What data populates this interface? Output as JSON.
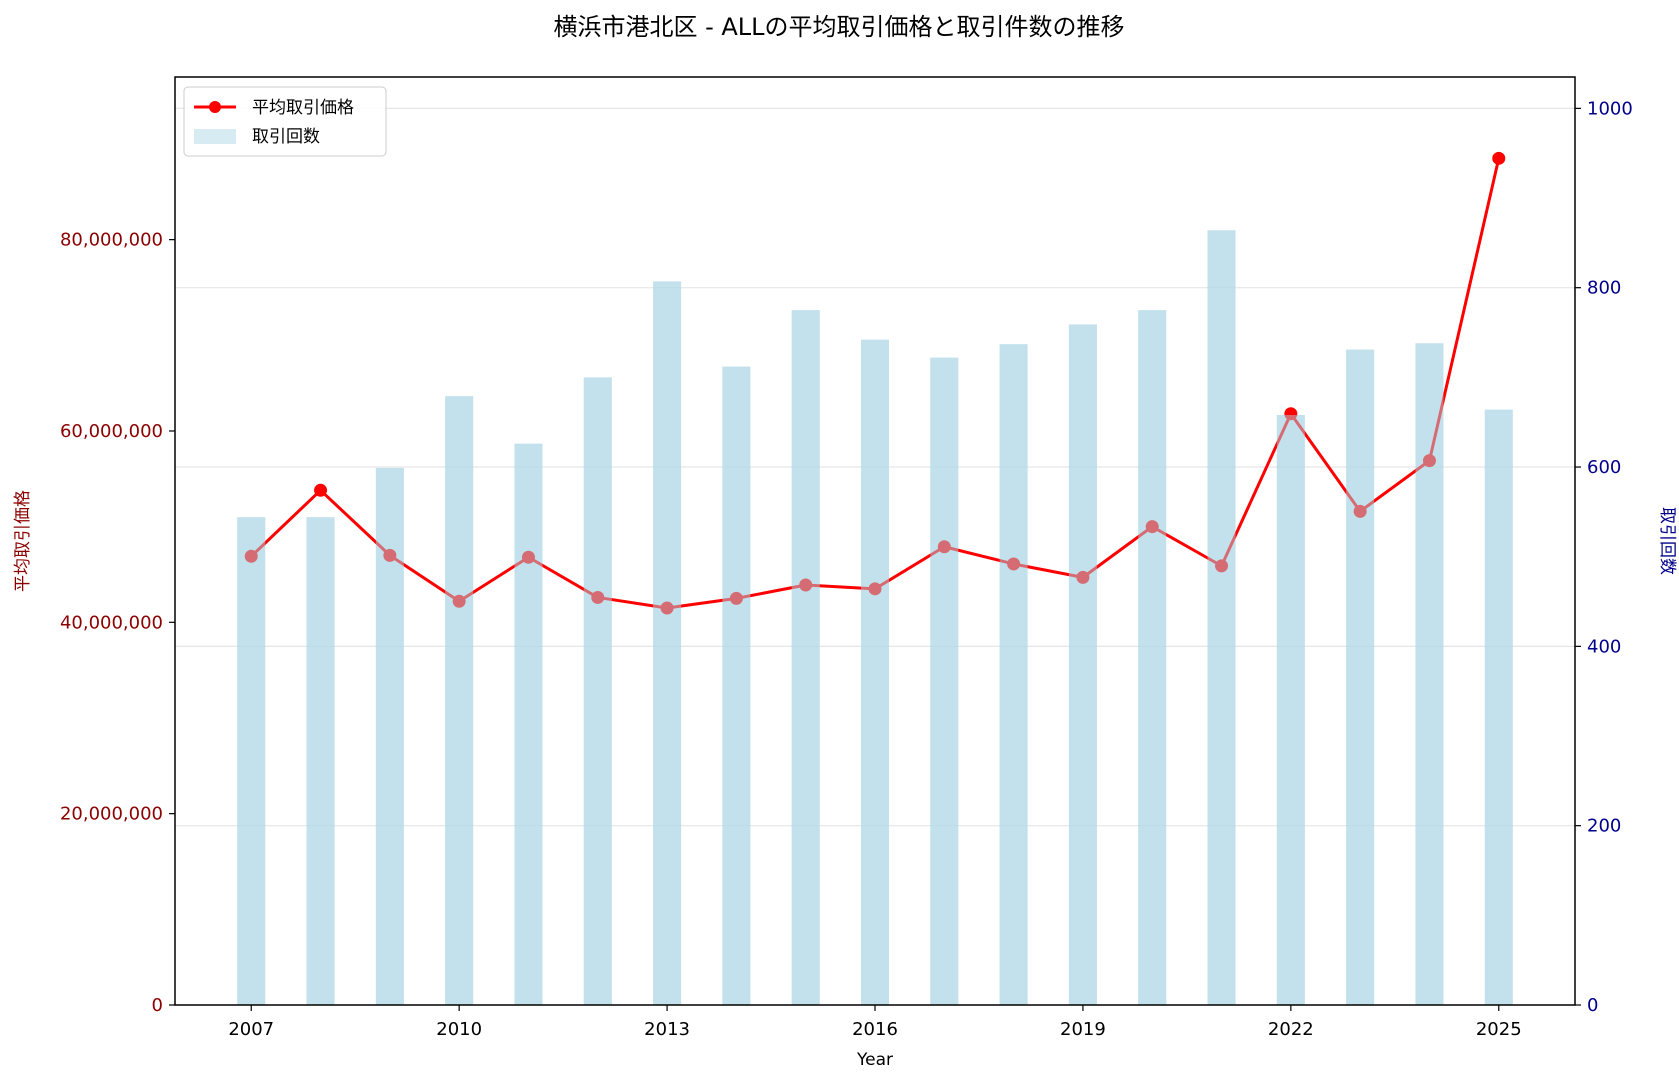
{
  "chart_data": {
    "type": "bar+line",
    "title": "横浜市港北区 - ALLの平均取引価格と取引件数の推移",
    "xlabel": "Year",
    "ylabel_left": "平均取引価格",
    "ylabel_right": "取引回数",
    "years": [
      2007,
      2008,
      2009,
      2010,
      2011,
      2012,
      2013,
      2014,
      2015,
      2016,
      2017,
      2018,
      2019,
      2020,
      2021,
      2022,
      2023,
      2024,
      2025
    ],
    "x_ticks": [
      "2007",
      "2010",
      "2013",
      "2016",
      "2019",
      "2022",
      "2025"
    ],
    "x_lim": [
      2005.9,
      2026.1
    ],
    "y_left_lim": [
      0,
      97000000
    ],
    "y_left_ticks": [
      "0",
      "20,000,000",
      "40,000,000",
      "60,000,000",
      "80,000,000"
    ],
    "y_left_tick_values": [
      0,
      20000000,
      40000000,
      60000000,
      80000000
    ],
    "y_right_lim": [
      0,
      1035
    ],
    "y_right_ticks": [
      "0",
      "200",
      "400",
      "600",
      "800",
      "1000"
    ],
    "y_right_tick_values": [
      0,
      200,
      400,
      600,
      800,
      1000
    ],
    "grid": "horizontal (right axis)",
    "legend_position": "top-left",
    "series": [
      {
        "name": "平均取引価格",
        "kind": "line",
        "axis": "left",
        "color": "#ff0000",
        "values": [
          46900000,
          53800000,
          47000000,
          42200000,
          46800000,
          42600000,
          41500000,
          42500000,
          43900000,
          43500000,
          47900000,
          46100000,
          44700000,
          50000000,
          45900000,
          61800000,
          51600000,
          56900000,
          88500000
        ]
      },
      {
        "name": "取引回数",
        "kind": "bar",
        "axis": "right",
        "color": "#add8e6",
        "values": [
          544,
          544,
          599,
          679,
          626,
          700,
          807,
          712,
          775,
          742,
          722,
          737,
          759,
          775,
          864,
          658,
          731,
          738,
          664
        ]
      }
    ],
    "colors": {
      "left_axis": "#8b0000",
      "right_axis": "#00008b",
      "marker_behind": "#d46a73",
      "marker_front": "#ff0000",
      "grid": "#e6e6e6"
    }
  }
}
